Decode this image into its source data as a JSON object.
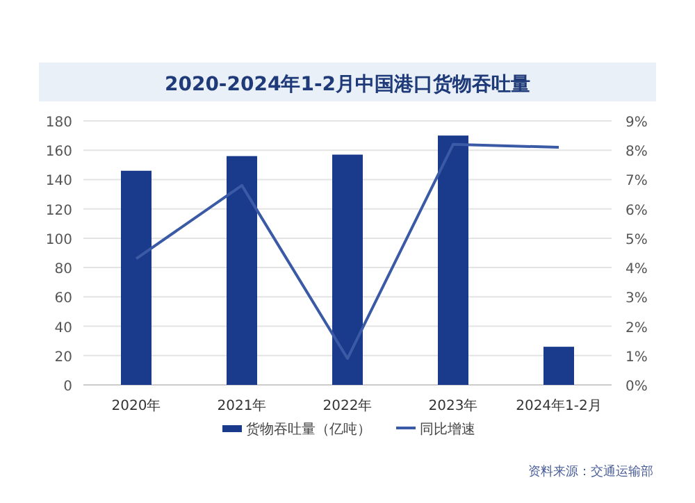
{
  "chart_data": {
    "type": "bar",
    "title": "2020-2024年1-2月中国港口货物吞吐量",
    "categories": [
      "2020年",
      "2021年",
      "2022年",
      "2023年",
      "2024年1-2月"
    ],
    "series": [
      {
        "name": "货物吞吐量（亿吨）",
        "color": "#1a3a8c",
        "values": [
          146,
          156,
          157,
          170,
          26
        ]
      },
      {
        "name": "同比增速",
        "type": "line",
        "axis": "y2",
        "color": "#3a5aa6",
        "values": [
          4.3,
          6.8,
          0.9,
          8.2,
          8.1
        ]
      }
    ],
    "ylim": [
      0,
      180
    ],
    "yticks": [
      0,
      20,
      40,
      60,
      80,
      100,
      120,
      140,
      160,
      180
    ],
    "y2lim": [
      0,
      9
    ],
    "y2ticks": [
      {
        "value": 0,
        "label": "0%"
      },
      {
        "value": 1,
        "label": "1%"
      },
      {
        "value": 2,
        "label": "2%"
      },
      {
        "value": 3,
        "label": "3%"
      },
      {
        "value": 4,
        "label": "4%"
      },
      {
        "value": 5,
        "label": "5%"
      },
      {
        "value": 6,
        "label": "6%"
      },
      {
        "value": 7,
        "label": "7%"
      },
      {
        "value": 8,
        "label": "8%"
      },
      {
        "value": 9,
        "label": "9%"
      }
    ],
    "grid": "y",
    "legend": "bottom",
    "marker": "none",
    "annotations": [
      "资料来源：交通运输部"
    ]
  }
}
